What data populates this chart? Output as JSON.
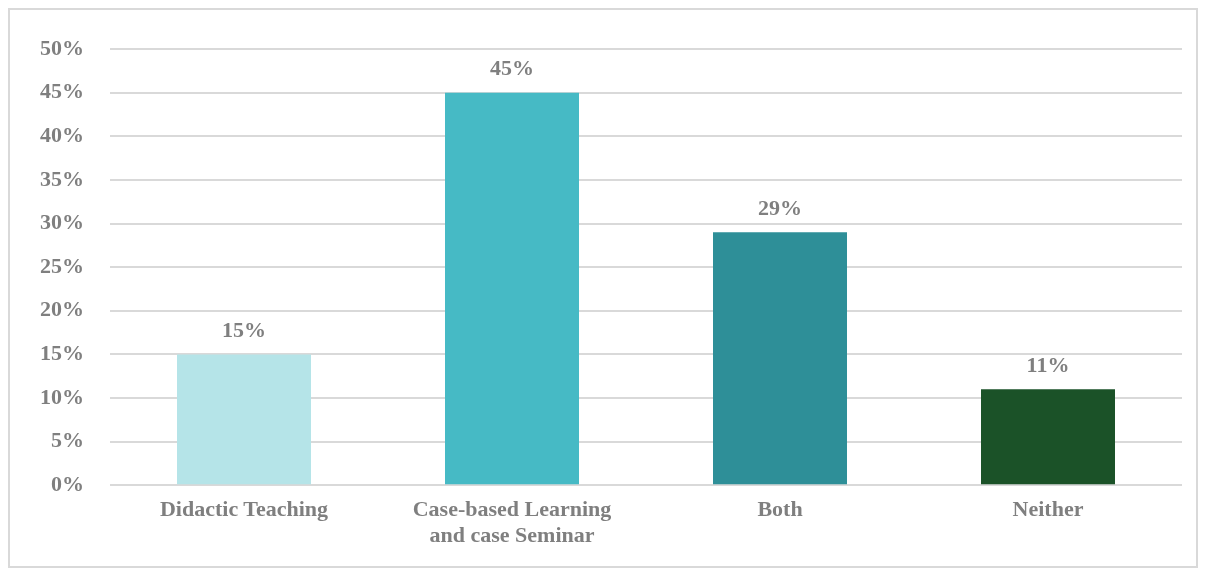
{
  "chart_data": {
    "type": "bar",
    "categories": [
      "Didactic Teaching",
      "Case-based Learning and case Seminar",
      "Both",
      "Neither"
    ],
    "values": [
      15,
      45,
      29,
      11
    ],
    "colors": [
      "#b5e4e8",
      "#46bac5",
      "#2e8f98",
      "#1b5228"
    ],
    "value_labels": [
      "15%",
      "45%",
      "29%",
      "11%"
    ],
    "ylim": [
      0,
      50
    ],
    "yticks": [
      {
        "value": 0,
        "label": "0%"
      },
      {
        "value": 5,
        "label": "5%"
      },
      {
        "value": 10,
        "label": "10%"
      },
      {
        "value": 15,
        "label": "15%"
      },
      {
        "value": 20,
        "label": "20%"
      },
      {
        "value": 25,
        "label": "25%"
      },
      {
        "value": 30,
        "label": "30%"
      },
      {
        "value": 35,
        "label": "35%"
      },
      {
        "value": 40,
        "label": "40%"
      },
      {
        "value": 45,
        "label": "45%"
      },
      {
        "value": 50,
        "label": "50%"
      }
    ],
    "grid": "y",
    "legend": false
  }
}
